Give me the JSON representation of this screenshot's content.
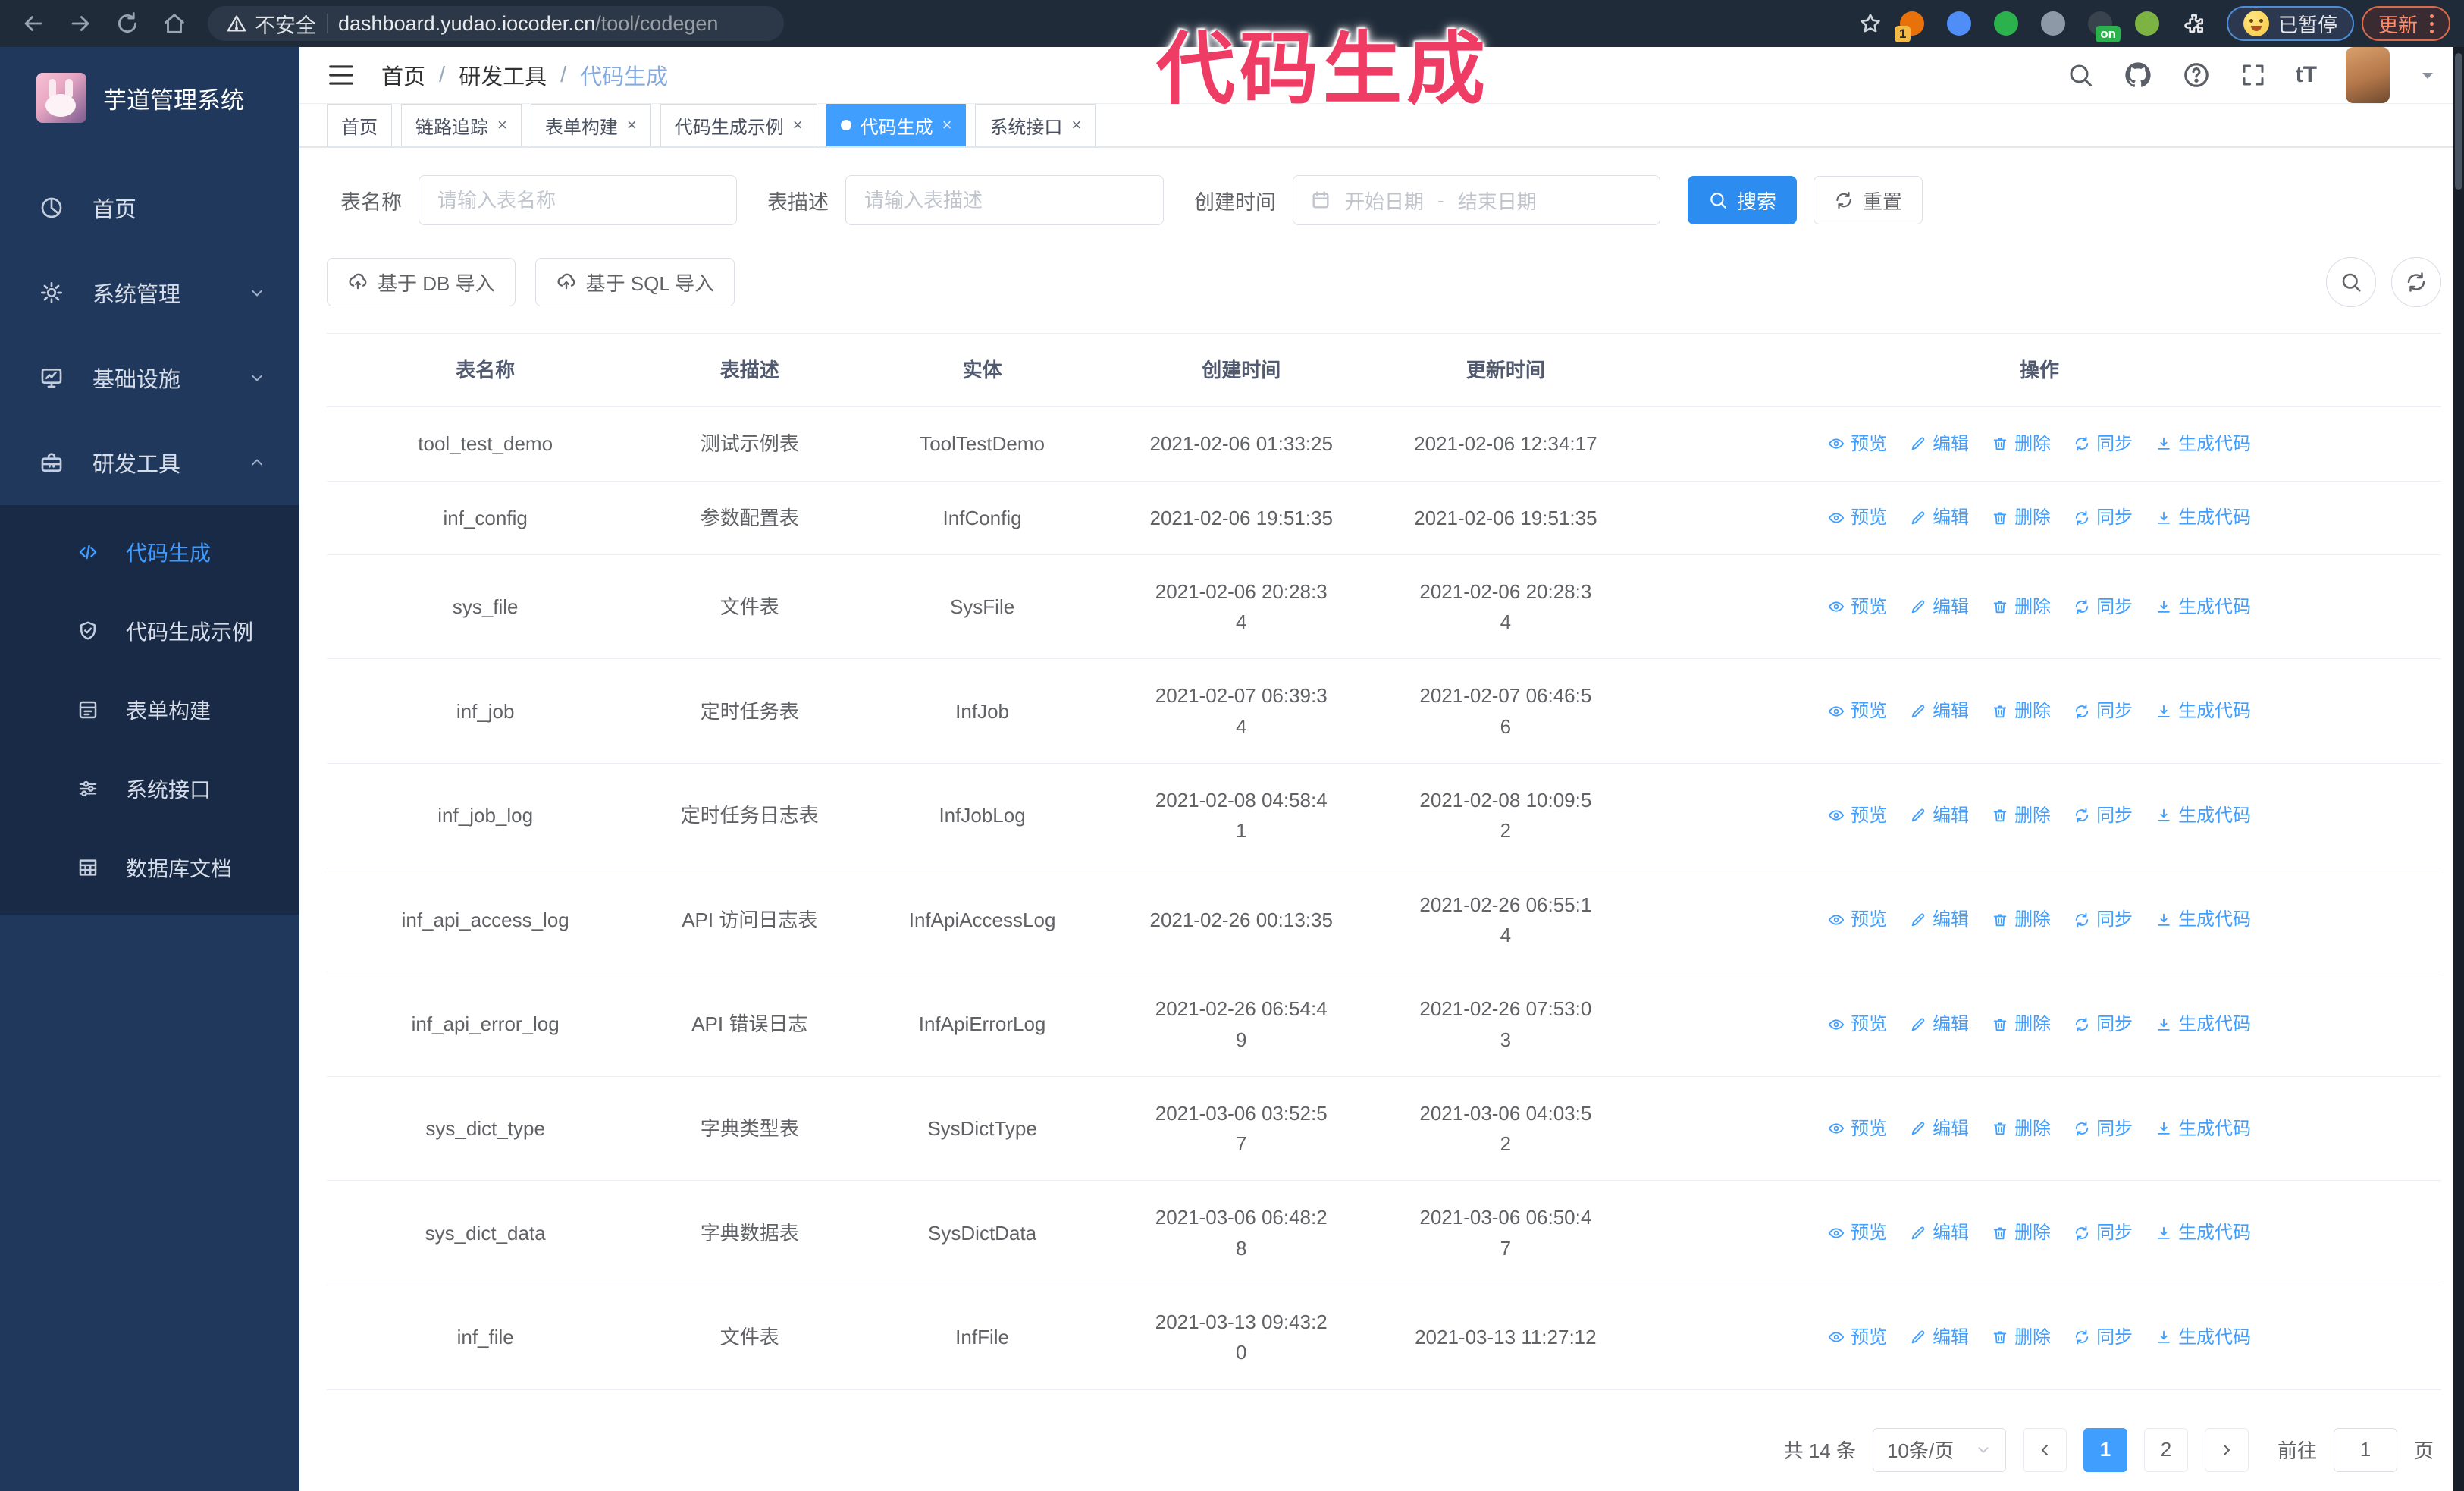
{
  "annotation": {
    "text": "代码生成",
    "color": "#ee3c64"
  },
  "browser": {
    "nav_icons": [
      "back-icon",
      "forward-icon",
      "reload-icon",
      "home-icon"
    ],
    "security_label": "不安全",
    "url_host": "dashboard.yudao.iocoder.cn",
    "url_path": "/tool/codegen",
    "bookmark_icon": "star-icon",
    "extensions": [
      {
        "name": "updater-extension-icon",
        "color": "#e8710a",
        "badge": "1"
      },
      {
        "name": "gem-extension-icon",
        "color": "#4f8df7",
        "badge": ""
      },
      {
        "name": "check-circle-extension-icon",
        "color": "#2bb24c",
        "badge": ""
      },
      {
        "name": "grid-extension-icon",
        "color": "#8e99a8",
        "badge": ""
      },
      {
        "name": "onetab-extension-icon",
        "color": "#39434e",
        "badge": "on"
      },
      {
        "name": "plant-extension-icon",
        "color": "#7cb342",
        "badge": ""
      },
      {
        "name": "puzzle-extensions-icon",
        "color": "#e8eaed",
        "badge": ""
      }
    ],
    "paused_label": "已暂停",
    "update_label": "更新"
  },
  "sidebar": {
    "title": "芋道管理系统",
    "items": [
      {
        "label": "首页",
        "icon": "dashboard-icon",
        "chevron": "",
        "active": false
      },
      {
        "label": "系统管理",
        "icon": "gear-icon",
        "chevron": "down",
        "active": false
      },
      {
        "label": "基础设施",
        "icon": "monitor-icon",
        "chevron": "down",
        "active": false
      },
      {
        "label": "研发工具",
        "icon": "toolbox-icon",
        "chevron": "up",
        "active": false
      }
    ],
    "subitems": [
      {
        "label": "代码生成",
        "icon": "code-icon",
        "active": true
      },
      {
        "label": "代码生成示例",
        "icon": "shield-check-icon",
        "active": false
      },
      {
        "label": "表单构建",
        "icon": "form-icon",
        "active": false
      },
      {
        "label": "系统接口",
        "icon": "sliders-icon",
        "active": false
      },
      {
        "label": "数据库文档",
        "icon": "database-icon",
        "active": false
      }
    ]
  },
  "header": {
    "breadcrumb": [
      "首页",
      "研发工具",
      "代码生成"
    ],
    "separator": "/",
    "right_icons": [
      "search-icon",
      "github-icon",
      "help-icon",
      "fullscreen-icon",
      "fontsize-icon"
    ],
    "fontsize_glyph": "tT"
  },
  "tabs": [
    {
      "label": "首页",
      "closable": false,
      "active": false
    },
    {
      "label": "链路追踪",
      "closable": true,
      "active": false
    },
    {
      "label": "表单构建",
      "closable": true,
      "active": false
    },
    {
      "label": "代码生成示例",
      "closable": true,
      "active": false
    },
    {
      "label": "代码生成",
      "closable": true,
      "active": true
    },
    {
      "label": "系统接口",
      "closable": true,
      "active": false
    }
  ],
  "filters": {
    "name_label": "表名称",
    "name_placeholder": "请输入表名称",
    "desc_label": "表描述",
    "desc_placeholder": "请输入表描述",
    "time_label": "创建时间",
    "start_placeholder": "开始日期",
    "range_separator": "-",
    "end_placeholder": "结束日期",
    "search_label": "搜索",
    "reset_label": "重置"
  },
  "toolbar": {
    "import_db_label": "基于 DB 导入",
    "import_sql_label": "基于 SQL 导入"
  },
  "table": {
    "columns": [
      "表名称",
      "表描述",
      "实体",
      "创建时间",
      "更新时间",
      "操作"
    ],
    "actions": [
      {
        "label": "预览",
        "icon": "eye-icon"
      },
      {
        "label": "编辑",
        "icon": "edit-icon"
      },
      {
        "label": "删除",
        "icon": "delete-icon"
      },
      {
        "label": "同步",
        "icon": "sync-icon"
      },
      {
        "label": "生成代码",
        "icon": "download-icon"
      }
    ],
    "rows": [
      {
        "name": "tool_test_demo",
        "desc": "测试示例表",
        "entity": "ToolTestDemo",
        "created": "2021-02-06 01:33:25",
        "updated": "2021-02-06 12:34:17"
      },
      {
        "name": "inf_config",
        "desc": "参数配置表",
        "entity": "InfConfig",
        "created": "2021-02-06 19:51:35",
        "updated": "2021-02-06 19:51:35"
      },
      {
        "name": "sys_file",
        "desc": "文件表",
        "entity": "SysFile",
        "created": "2021-02-06 20:28:3\n4",
        "updated": "2021-02-06 20:28:3\n4"
      },
      {
        "name": "inf_job",
        "desc": "定时任务表",
        "entity": "InfJob",
        "created": "2021-02-07 06:39:3\n4",
        "updated": "2021-02-07 06:46:5\n6"
      },
      {
        "name": "inf_job_log",
        "desc": "定时任务日志表",
        "entity": "InfJobLog",
        "created": "2021-02-08 04:58:4\n1",
        "updated": "2021-02-08 10:09:5\n2"
      },
      {
        "name": "inf_api_access_log",
        "desc": "API 访问日志表",
        "entity": "InfApiAccessLog",
        "created": "2021-02-26 00:13:35",
        "updated": "2021-02-26 06:55:1\n4"
      },
      {
        "name": "inf_api_error_log",
        "desc": "API 错误日志",
        "entity": "InfApiErrorLog",
        "created": "2021-02-26 06:54:4\n9",
        "updated": "2021-02-26 07:53:0\n3"
      },
      {
        "name": "sys_dict_type",
        "desc": "字典类型表",
        "entity": "SysDictType",
        "created": "2021-03-06 03:52:5\n7",
        "updated": "2021-03-06 04:03:5\n2"
      },
      {
        "name": "sys_dict_data",
        "desc": "字典数据表",
        "entity": "SysDictData",
        "created": "2021-03-06 06:48:2\n8",
        "updated": "2021-03-06 06:50:4\n7"
      },
      {
        "name": "inf_file",
        "desc": "文件表",
        "entity": "InfFile",
        "created": "2021-03-13 09:43:2\n0",
        "updated": "2021-03-13 11:27:12"
      }
    ]
  },
  "pagination": {
    "total_label": "共 14 条",
    "page_size": "10条/页",
    "pages": [
      {
        "label": "1",
        "active": true
      },
      {
        "label": "2",
        "active": false
      }
    ],
    "goto_label": "前往",
    "goto_value": "1",
    "page_suffix": "页"
  },
  "colors": {
    "accent": "#409eff",
    "annotation": "#ee3c64",
    "sidebar_bg": "#20385c",
    "submenu_bg": "#182a46"
  }
}
